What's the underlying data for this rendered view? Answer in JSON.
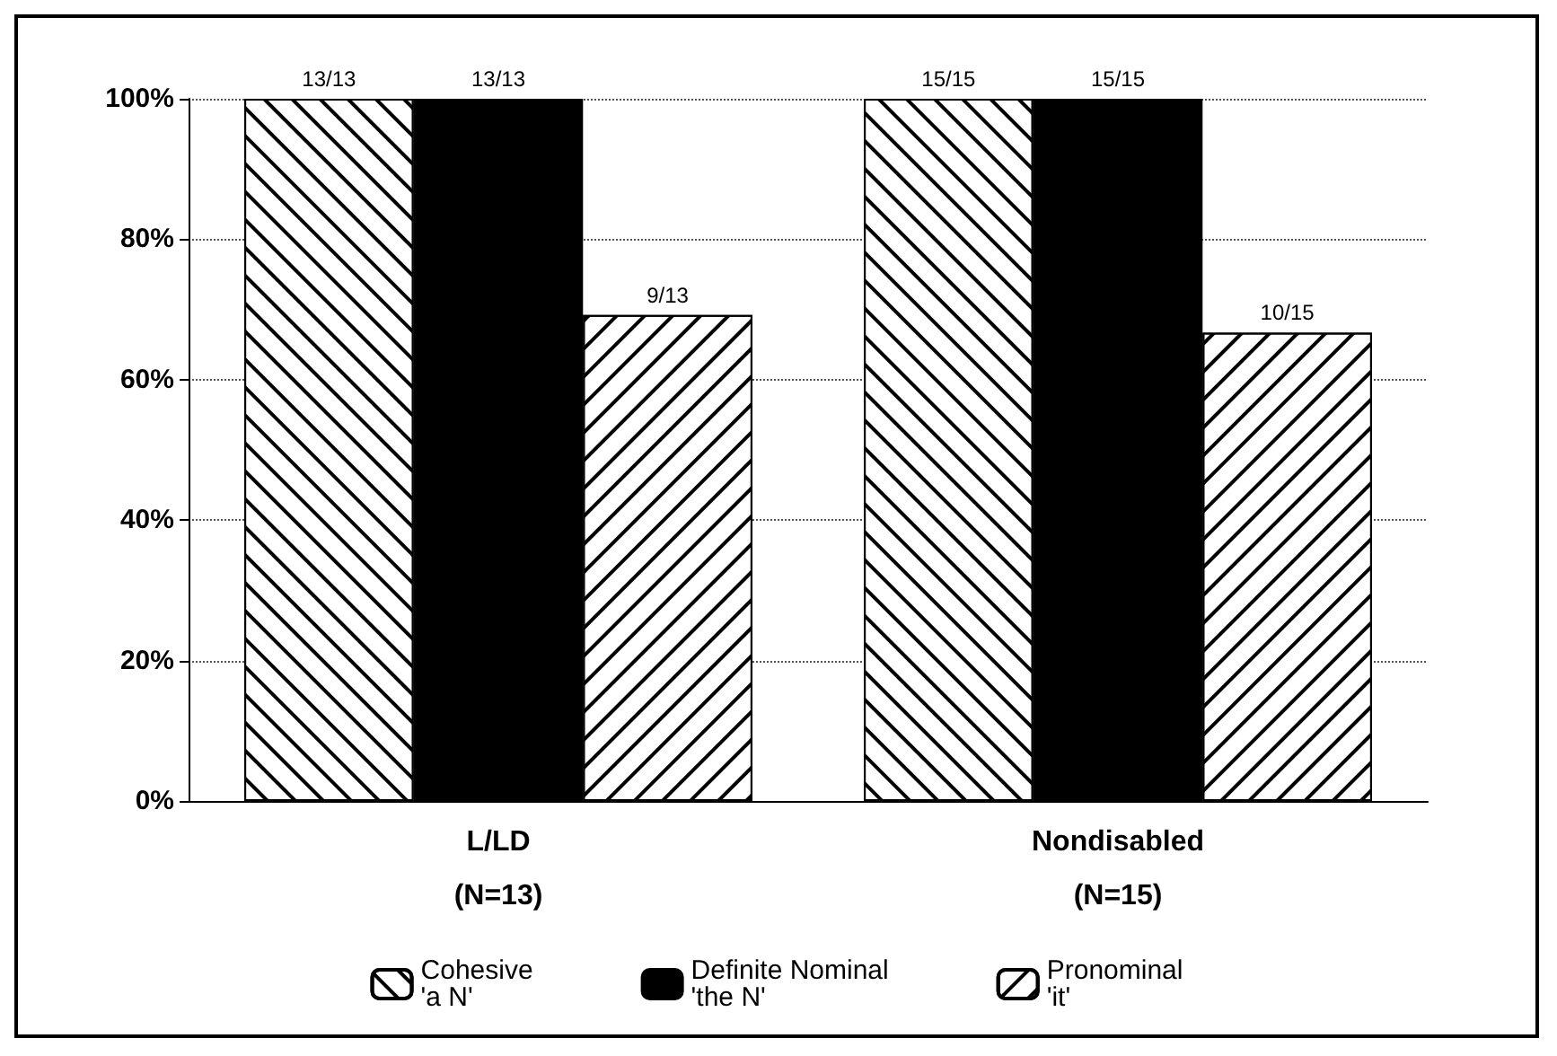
{
  "chart_data": {
    "type": "bar",
    "categories": [
      "L/LD\n(N=13)",
      "Nondisabled\n(N=15)"
    ],
    "series": [
      {
        "name": "Cohesive\n'a N'",
        "color": "#ffffff",
        "values": [
          100,
          100
        ],
        "value_labels": [
          "13/13",
          "15/15"
        ]
      },
      {
        "name": "Definite Nominal\n'the N'",
        "color": "#000000",
        "values": [
          100,
          100
        ],
        "value_labels": [
          "13/13",
          "15/15"
        ]
      },
      {
        "name": "Pronominal\n'it'",
        "color": "#ffffff",
        "values": [
          69.2,
          66.7
        ],
        "value_labels": [
          "9/13",
          "10/15"
        ]
      }
    ],
    "ylim": [
      0,
      100
    ],
    "yticks": [
      {
        "value": 0,
        "label": "0%"
      },
      {
        "value": 20,
        "label": "20%"
      },
      {
        "value": 40,
        "label": "40%"
      },
      {
        "value": 60,
        "label": "60%"
      },
      {
        "value": 80,
        "label": "80%"
      },
      {
        "value": 100,
        "label": "100%"
      }
    ],
    "grid": "y",
    "legend": "bottom"
  }
}
